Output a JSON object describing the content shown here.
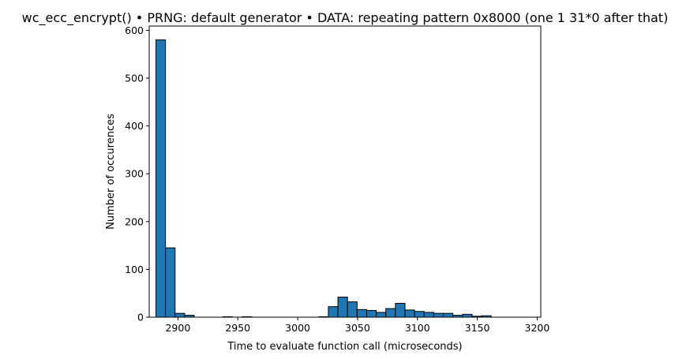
{
  "chart_data": {
    "type": "bar",
    "title": "wc_ecc_encrypt() • PRNG: default generator • DATA: repeating pattern 0x8000 (one 1 31*0 after that)",
    "xlabel": "Time to evaluate function call (microseconds)",
    "ylabel": "Number of occurences",
    "xlim": [
      2876,
      3203
    ],
    "ylim": [
      0,
      609
    ],
    "xticks": [
      2900,
      2950,
      3000,
      3050,
      3100,
      3150,
      3200
    ],
    "yticks": [
      0,
      100,
      200,
      300,
      400,
      500,
      600
    ],
    "bin_edges": [
      2881.6,
      2889.6,
      2897.6,
      2905.6,
      2913.6,
      2921.6,
      2929.6,
      2937.6,
      2945.6,
      2953.6,
      2961.6,
      2969.6,
      2977.6,
      2985.6,
      2993.6,
      3001.6,
      3009.6,
      3017.6,
      3025.6,
      3033.6,
      3041.6,
      3049.6,
      3057.6,
      3065.6,
      3073.6,
      3081.6,
      3089.6,
      3097.6,
      3105.6,
      3113.6,
      3121.6,
      3129.6,
      3137.6,
      3145.6,
      3153.6,
      3161.6,
      3169.6,
      3177.6,
      3185.6
    ],
    "values": [
      580,
      145,
      8,
      4,
      0,
      0,
      0,
      1,
      0,
      1,
      0,
      0,
      0,
      0,
      0,
      0,
      0,
      1,
      22,
      42,
      32,
      16,
      14,
      10,
      18,
      29,
      15,
      12,
      10,
      8,
      8,
      4,
      6,
      2,
      3,
      0,
      0,
      0
    ],
    "bar_color": "#1f77b4",
    "edge_color": "#000000",
    "grid": false,
    "legend": "none"
  }
}
